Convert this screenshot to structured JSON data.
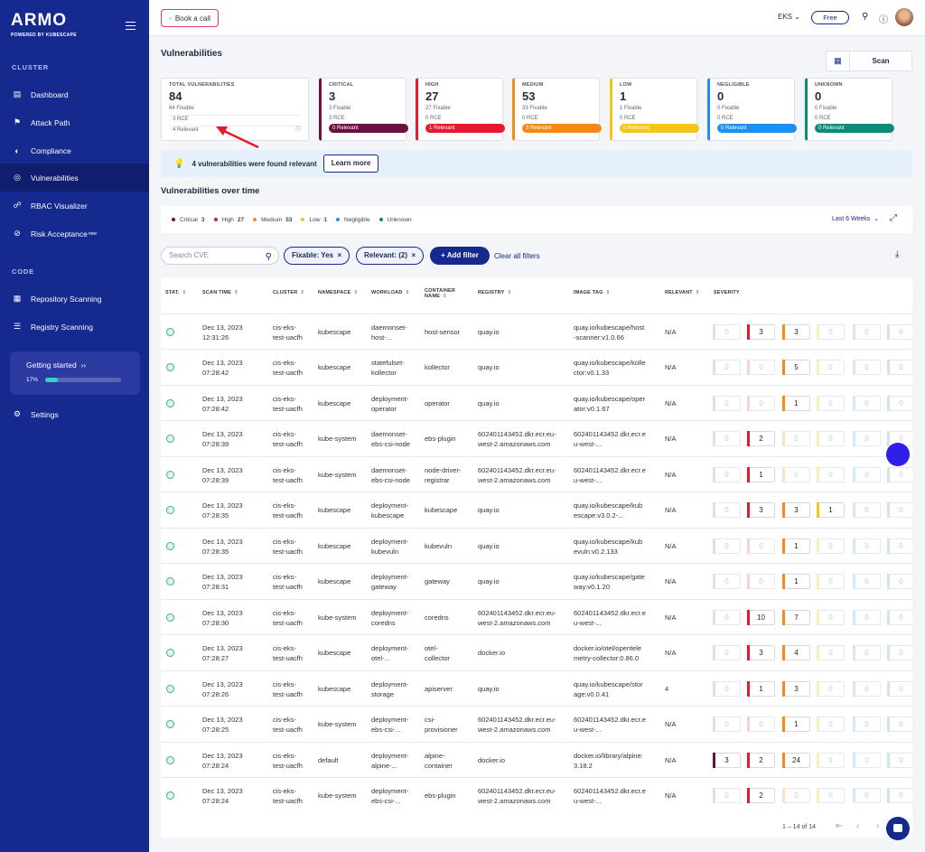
{
  "sidebar": {
    "logo": "ARMO",
    "logo_sub": "POWERED BY KUBESCAPE",
    "cluster_label": "CLUSTER",
    "code_label": "CODE",
    "items": [
      {
        "label": "Dashboard",
        "icon": "dashboard-icon"
      },
      {
        "label": "Attack Path",
        "icon": "attack-path-icon"
      },
      {
        "label": "Compliance",
        "icon": "compliance-icon"
      },
      {
        "label": "Vulnerabilities",
        "icon": "vulnerabilities-icon"
      },
      {
        "label": "RBAC Visualizer",
        "icon": "rbac-icon"
      },
      {
        "label": "Risk Acceptance",
        "badge": "new",
        "icon": "risk-icon"
      },
      {
        "label": "Repository Scanning",
        "icon": "repo-icon"
      },
      {
        "label": "Registry Scanning",
        "icon": "registry-icon"
      }
    ],
    "getting_started": {
      "title": "Getting started",
      "percent_label": "17%",
      "progress": 0.17
    },
    "settings": "Settings"
  },
  "topbar": {
    "book_call": "Book a call",
    "cluster": "EKS",
    "plan": "Free"
  },
  "page": {
    "title": "Vulnerabilities",
    "scan_label": "Scan",
    "banner_text": "4 vulnerabilities were found relevant",
    "learn_more": "Learn more",
    "over_time": "Vulnerabilities over time",
    "range": "Last 6 Weeks",
    "search_placeholder": "Search CVE",
    "chip_fixable": "Fixable: Yes",
    "chip_relevant": "Relevant: (2)",
    "add_filter": "+ Add filter",
    "clear_filters": "Clear all filters",
    "pagination": "1 – 14 of 14"
  },
  "total_card": {
    "title": "TOTAL VULNERABILITIES",
    "count": "84",
    "fixable": "64 Fixable",
    "rce": "3 RCE",
    "relevant": "4 Relevant"
  },
  "severity_cards": [
    {
      "title": "CRITICAL",
      "count": "3",
      "fixable": "3 Fixable",
      "rce": "3 RCE",
      "relevant": "0 Relevant",
      "color": "#6b1041"
    },
    {
      "title": "HIGH",
      "count": "27",
      "fixable": "27 Fixable",
      "rce": "0 RCE",
      "relevant": "1 Relevant",
      "color": "#e8192c"
    },
    {
      "title": "MEDIUM",
      "count": "53",
      "fixable": "33 Fixable",
      "rce": "0 RCE",
      "relevant": "3 Relevant",
      "color": "#f48b17"
    },
    {
      "title": "LOW",
      "count": "1",
      "fixable": "1 Fixable",
      "rce": "0 RCE",
      "relevant": "0 Relevant",
      "color": "#f5c518"
    },
    {
      "title": "NEGLIGIBLE",
      "count": "0",
      "fixable": "0 Fixable",
      "rce": "0 RCE",
      "relevant": "0 Relevant",
      "color": "#1e8ff0"
    },
    {
      "title": "UNKNOWN",
      "count": "0",
      "fixable": "0 Fixable",
      "rce": "0 RCE",
      "relevant": "0 Relevant",
      "color": "#0e8a78"
    }
  ],
  "legend": [
    {
      "label": "Critical",
      "value": "3",
      "color": "#6b1041"
    },
    {
      "label": "High",
      "value": "27",
      "color": "#e8192c"
    },
    {
      "label": "Medium",
      "value": "53",
      "color": "#f48b17"
    },
    {
      "label": "Low",
      "value": "1",
      "color": "#f5c518"
    },
    {
      "label": "Negligible",
      "value": "",
      "color": "#1e8ff0"
    },
    {
      "label": "Unknown",
      "value": "",
      "color": "#0e8a78"
    }
  ],
  "table": {
    "columns": [
      "STAT.",
      "SCAN TIME",
      "CLUSTER",
      "NAMESPACE",
      "WORKLOAD",
      "CONTAINER NAME",
      "REGISTRY",
      "IMAGE TAG",
      "RELEVANT",
      "SEVERITY"
    ],
    "rows": [
      {
        "date": "Dec 13, 2023",
        "time": "12:31:26",
        "cluster": [
          "cis-eks-",
          "test-uacfh"
        ],
        "namespace": "kubescape",
        "workload": [
          "daemonset-",
          "host-..."
        ],
        "container": [
          "host-sensor"
        ],
        "registry": [
          "quay.io"
        ],
        "image": [
          "quay.io/kubescape/host",
          "-scanner:v1.0.66"
        ],
        "relevant": "N/A",
        "sev": [
          "0",
          "3",
          "3",
          "0",
          "0",
          "0"
        ]
      },
      {
        "date": "Dec 13, 2023",
        "time": "07:28:42",
        "cluster": [
          "cis-eks-",
          "test-uacfh"
        ],
        "namespace": "kubescape",
        "workload": [
          "statefulset-",
          "kollector"
        ],
        "container": [
          "kollector"
        ],
        "registry": [
          "quay.io"
        ],
        "image": [
          "quay.io/kubescape/kolle",
          "ctor:v0.1.33"
        ],
        "relevant": "N/A",
        "sev": [
          "0",
          "0",
          "5",
          "0",
          "0",
          "0"
        ]
      },
      {
        "date": "Dec 13, 2023",
        "time": "07:28:42",
        "cluster": [
          "cis-eks-",
          "test-uacfh"
        ],
        "namespace": "kubescape",
        "workload": [
          "deployment-",
          "operator"
        ],
        "container": [
          "operator"
        ],
        "registry": [
          "quay.io"
        ],
        "image": [
          "quay.io/kubescape/oper",
          "ator:v0.1.67"
        ],
        "relevant": "N/A",
        "sev": [
          "0",
          "0",
          "1",
          "0",
          "0",
          "0"
        ]
      },
      {
        "date": "Dec 13, 2023",
        "time": "07:28:39",
        "cluster": [
          "cis-eks-",
          "test-uacfh"
        ],
        "namespace": "kube-system",
        "workload": [
          "daemonset-",
          "ebs-csi-node"
        ],
        "container": [
          "ebs-plugin"
        ],
        "registry": [
          "602401143452.dkr.ecr.eu-",
          "west-2.amazonaws.com"
        ],
        "image": [
          "602401143452.dkr.ecr.e",
          "u-west-..."
        ],
        "relevant": "N/A",
        "sev": [
          "0",
          "2",
          "0",
          "0",
          "0",
          "0"
        ]
      },
      {
        "date": "Dec 13, 2023",
        "time": "07:28:39",
        "cluster": [
          "cis-eks-",
          "test-uacfh"
        ],
        "namespace": "kube-system",
        "workload": [
          "daemonset-",
          "ebs-csi-node"
        ],
        "container": [
          "node-driver-",
          "registrar"
        ],
        "registry": [
          "602401143452.dkr.ecr.eu-",
          "west-2.amazonaws.com"
        ],
        "image": [
          "602401143452.dkr.ecr.e",
          "u-west-..."
        ],
        "relevant": "N/A",
        "sev": [
          "0",
          "1",
          "0",
          "0",
          "0",
          "0"
        ]
      },
      {
        "date": "Dec 13, 2023",
        "time": "07:28:35",
        "cluster": [
          "cis-eks-",
          "test-uacfh"
        ],
        "namespace": "kubescape",
        "workload": [
          "deployment-",
          "kubescape"
        ],
        "container": [
          "kubescape"
        ],
        "registry": [
          "quay.io"
        ],
        "image": [
          "quay.io/kubescape/kub",
          "escape:v3.0.2-..."
        ],
        "relevant": "N/A",
        "sev": [
          "0",
          "3",
          "3",
          "1",
          "0",
          "0"
        ]
      },
      {
        "date": "Dec 13, 2023",
        "time": "07:28:35",
        "cluster": [
          "cis-eks-",
          "test-uacfh"
        ],
        "namespace": "kubescape",
        "workload": [
          "deployment-",
          "kubevuln"
        ],
        "container": [
          "kubevuln"
        ],
        "registry": [
          "quay.io"
        ],
        "image": [
          "quay.io/kubescape/kub",
          "evuln:v0.2.133"
        ],
        "relevant": "N/A",
        "sev": [
          "0",
          "0",
          "1",
          "0",
          "0",
          "0"
        ]
      },
      {
        "date": "Dec 13, 2023",
        "time": "07:28:31",
        "cluster": [
          "cis-eks-",
          "test-uacfh"
        ],
        "namespace": "kubescape",
        "workload": [
          "deployment-",
          "gateway"
        ],
        "container": [
          "gateway"
        ],
        "registry": [
          "quay.io"
        ],
        "image": [
          "quay.io/kubescape/gate",
          "way:v0.1.20"
        ],
        "relevant": "N/A",
        "sev": [
          "0",
          "0",
          "1",
          "0",
          "0",
          "0"
        ]
      },
      {
        "date": "Dec 13, 2023",
        "time": "07:28:30",
        "cluster": [
          "cis-eks-",
          "test-uacfh"
        ],
        "namespace": "kube-system",
        "workload": [
          "deployment-",
          "coredns"
        ],
        "container": [
          "coredns"
        ],
        "registry": [
          "602401143452.dkr.ecr.eu-",
          "west-2.amazonaws.com"
        ],
        "image": [
          "602401143452.dkr.ecr.e",
          "u-west-..."
        ],
        "relevant": "N/A",
        "sev": [
          "0",
          "10",
          "7",
          "0",
          "0",
          "0"
        ]
      },
      {
        "date": "Dec 13, 2023",
        "time": "07:28:27",
        "cluster": [
          "cis-eks-",
          "test-uacfh"
        ],
        "namespace": "kubescape",
        "workload": [
          "deployment-",
          "otel-..."
        ],
        "container": [
          "otel-",
          "collector"
        ],
        "registry": [
          "docker.io"
        ],
        "image": [
          "docker.io/otel/opentele",
          "metry-collector:0.86.0"
        ],
        "relevant": "N/A",
        "sev": [
          "0",
          "3",
          "4",
          "0",
          "0",
          "0"
        ]
      },
      {
        "date": "Dec 13, 2023",
        "time": "07:28:26",
        "cluster": [
          "cis-eks-",
          "test-uacfh"
        ],
        "namespace": "kubescape",
        "workload": [
          "deployment-",
          "storage"
        ],
        "container": [
          "apiserver"
        ],
        "registry": [
          "quay.io"
        ],
        "image": [
          "quay.io/kubescape/stor",
          "age:v0.0.41"
        ],
        "relevant": "4",
        "sev": [
          "0",
          "1",
          "3",
          "0",
          "0",
          "0"
        ]
      },
      {
        "date": "Dec 13, 2023",
        "time": "07:28:25",
        "cluster": [
          "cis-eks-",
          "test-uacfh"
        ],
        "namespace": "kube-system",
        "workload": [
          "deployment-",
          "ebs-csi-..."
        ],
        "container": [
          "csi-",
          "provisioner"
        ],
        "registry": [
          "602401143452.dkr.ecr.eu-",
          "west-2.amazonaws.com"
        ],
        "image": [
          "602401143452.dkr.ecr.e",
          "u-west-..."
        ],
        "relevant": "N/A",
        "sev": [
          "0",
          "0",
          "1",
          "0",
          "0",
          "0"
        ]
      },
      {
        "date": "Dec 13, 2023",
        "time": "07:28:24",
        "cluster": [
          "cis-eks-",
          "test-uacfh"
        ],
        "namespace": "default",
        "workload": [
          "deployment-",
          "alpine-..."
        ],
        "container": [
          "alpine-",
          "container"
        ],
        "registry": [
          "docker.io"
        ],
        "image": [
          "docker.io/library/alpine:",
          "3.18.2"
        ],
        "relevant": "N/A",
        "sev": [
          "3",
          "2",
          "24",
          "0",
          "0",
          "0"
        ]
      },
      {
        "date": "Dec 13, 2023",
        "time": "07:28:24",
        "cluster": [
          "cis-eks-",
          "test-uacfh"
        ],
        "namespace": "kube-system",
        "workload": [
          "deployment-",
          "ebs-csi-..."
        ],
        "container": [
          "ebs-plugin"
        ],
        "registry": [
          "602401143452.dkr.ecr.eu-",
          "west-2.amazonaws.com"
        ],
        "image": [
          "602401143452.dkr.ecr.e",
          "u-west-..."
        ],
        "relevant": "N/A",
        "sev": [
          "0",
          "2",
          "0",
          "0",
          "0",
          "0"
        ]
      }
    ]
  }
}
